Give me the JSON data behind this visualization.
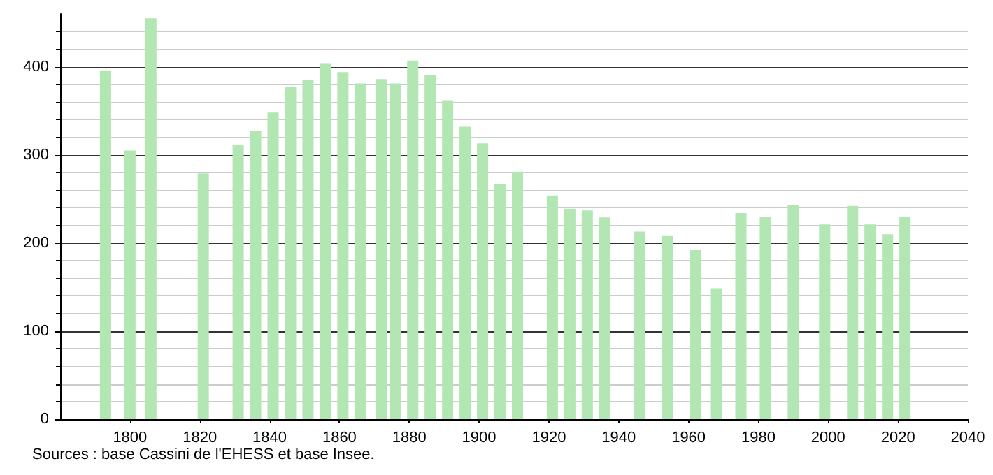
{
  "chart_data": {
    "type": "bar",
    "x": [
      1793,
      1800,
      1806,
      1821,
      1831,
      1836,
      1841,
      1846,
      1851,
      1856,
      1861,
      1866,
      1872,
      1876,
      1881,
      1886,
      1891,
      1896,
      1901,
      1906,
      1911,
      1921,
      1926,
      1931,
      1936,
      1946,
      1954,
      1962,
      1968,
      1975,
      1982,
      1990,
      1999,
      2007,
      2012,
      2017,
      2022
    ],
    "values": [
      396,
      305,
      455,
      279,
      311,
      327,
      348,
      377,
      385,
      404,
      394,
      381,
      386,
      381,
      407,
      391,
      362,
      332,
      313,
      267,
      281,
      254,
      239,
      237,
      229,
      213,
      208,
      192,
      148,
      234,
      230,
      243,
      221,
      242,
      221,
      210,
      230
    ],
    "color": "#b2e6b2",
    "xlim": [
      1780,
      2040
    ],
    "xticks": [
      1800,
      1820,
      1840,
      1860,
      1880,
      1900,
      1920,
      1940,
      1960,
      1980,
      2000,
      2020,
      2040
    ],
    "ylim": [
      0,
      460
    ],
    "yticks": [
      0,
      100,
      200,
      300,
      400
    ],
    "grid": true,
    "annotations": [
      "Sources : base Cassini de l'EHESS et base Insee."
    ]
  }
}
